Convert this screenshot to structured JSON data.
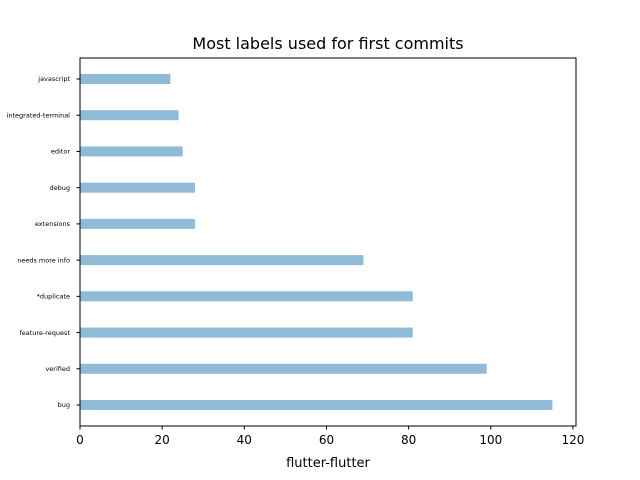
{
  "chart_data": {
    "type": "bar",
    "orientation": "horizontal",
    "title": "Most labels used for first commits",
    "xlabel": "flutter-flutter",
    "ylabel": "",
    "categories": [
      "bug",
      "verified",
      "feature-request",
      "*duplicate",
      "needs more info",
      "extensions",
      "debug",
      "editor",
      "integrated-terminal",
      "javascript"
    ],
    "values": [
      115,
      99,
      81,
      81,
      69,
      28,
      28,
      25,
      24,
      22
    ],
    "xlim": [
      0,
      120.75
    ],
    "xticks": [
      "0",
      "20",
      "40",
      "60",
      "80",
      "100",
      "120"
    ],
    "bar_color": "#8fbbd9",
    "grid": false,
    "legend": "none"
  }
}
